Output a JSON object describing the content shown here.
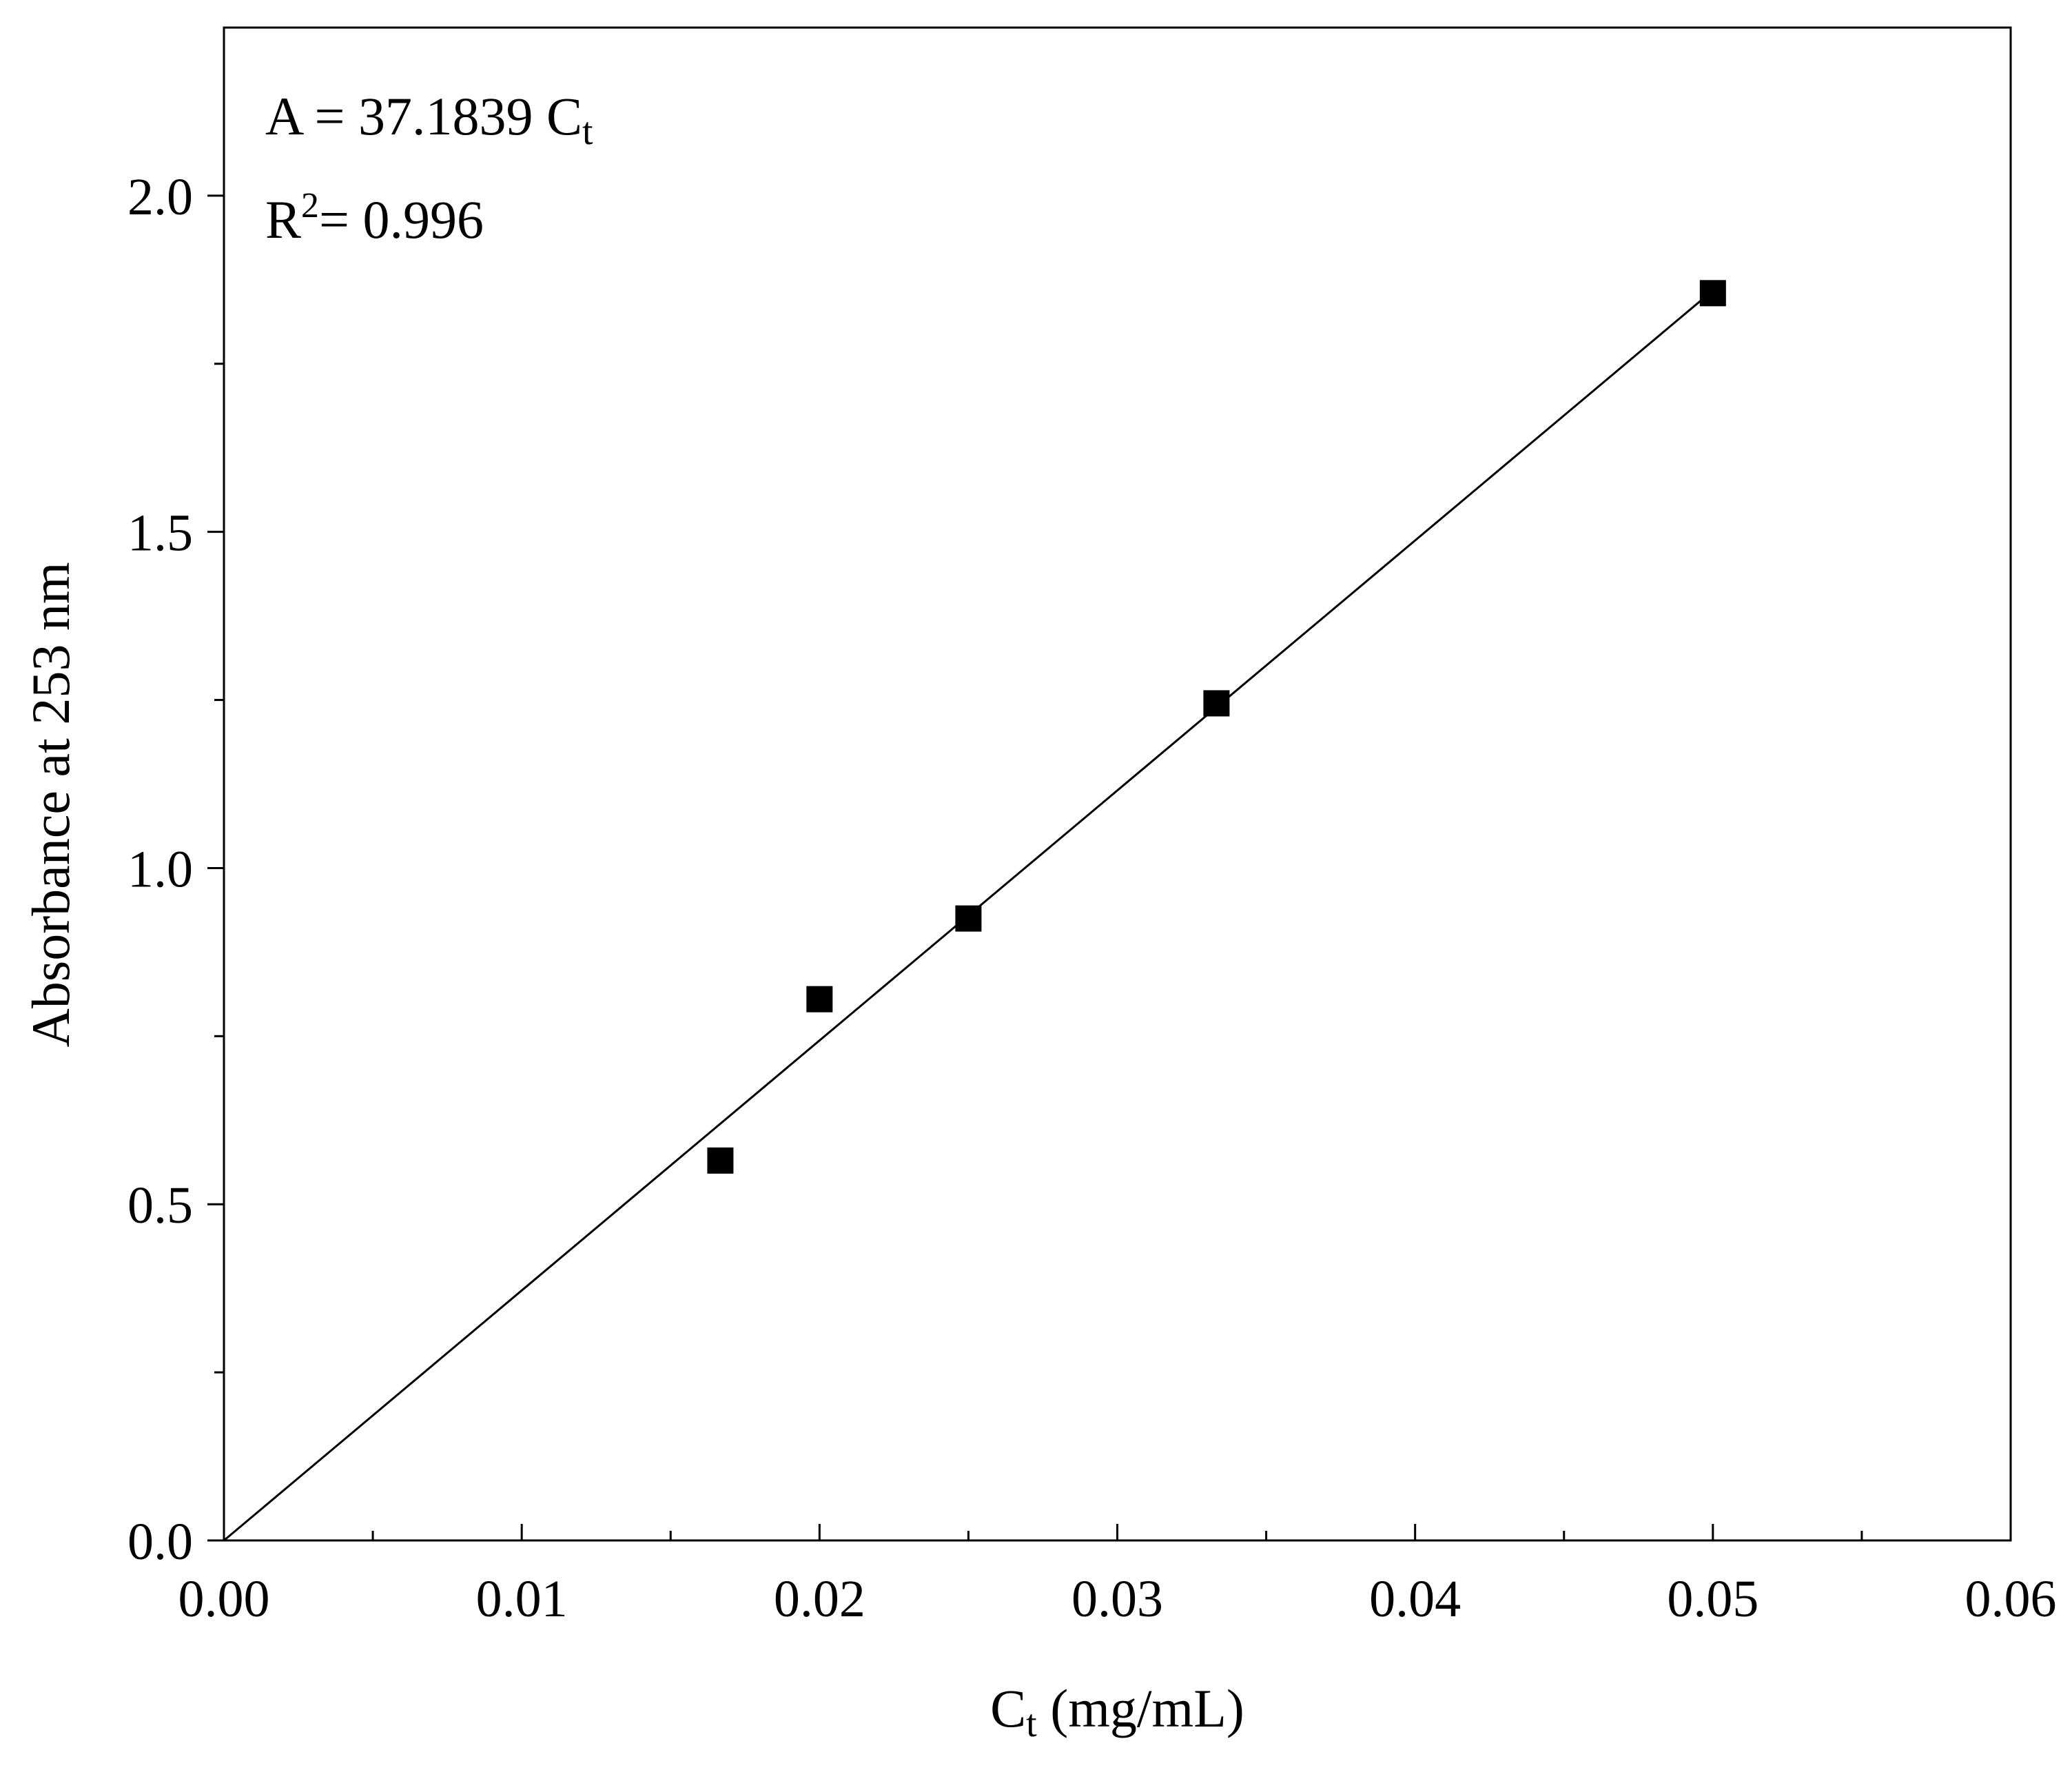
{
  "chart_data": {
    "type": "scatter",
    "title": "",
    "xlabel": {
      "main": "C",
      "subscript": "t",
      "units": " (mg/mL)"
    },
    "ylabel": "Absorbance at 253 nm",
    "xlim": [
      0,
      0.06
    ],
    "ylim": [
      0,
      2.25
    ],
    "x_ticks": [
      0.0,
      0.01,
      0.02,
      0.03,
      0.04,
      0.05,
      0.06
    ],
    "x_tick_labels": [
      "0.00",
      "0.01",
      "0.02",
      "0.03",
      "0.04",
      "0.05",
      "0.06"
    ],
    "x_minor_ticks": [
      0.005,
      0.015,
      0.025,
      0.035,
      0.045,
      0.055
    ],
    "y_ticks": [
      0.0,
      0.5,
      1.0,
      1.5,
      2.0
    ],
    "y_tick_labels": [
      "0.0",
      "0.5",
      "1.0",
      "1.5",
      "2.0"
    ],
    "y_minor_ticks": [
      0.25,
      0.75,
      1.25,
      1.75
    ],
    "grid": false,
    "series": [
      {
        "name": "data",
        "type": "scatter",
        "marker": "square",
        "color": "#000000",
        "x": [
          0.01667,
          0.02,
          0.025,
          0.03333,
          0.05
        ],
        "y": [
          0.565,
          0.805,
          0.925,
          1.245,
          1.855
        ]
      },
      {
        "name": "linear fit",
        "type": "line",
        "color": "#000000",
        "x": [
          0,
          0.05
        ],
        "y": [
          0,
          1.859
        ]
      }
    ],
    "annotations": {
      "equation": {
        "lhs": "A = 37.1839 C",
        "subscript": "t"
      },
      "r_squared": {
        "symbol": "R",
        "superscript": "2",
        "rest": "= 0.996"
      }
    }
  }
}
